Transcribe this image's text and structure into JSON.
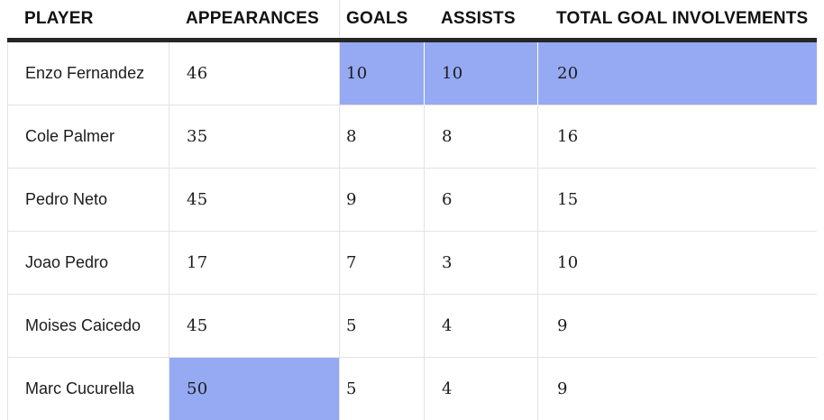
{
  "table": {
    "columns": [
      {
        "key": "player",
        "label": "PLAYER"
      },
      {
        "key": "appearances",
        "label": "APPEARANCES"
      },
      {
        "key": "goals",
        "label": "GOALS"
      },
      {
        "key": "assists",
        "label": "ASSISTS"
      },
      {
        "key": "total",
        "label": "TOTAL GOAL INVOLVEMENTS"
      }
    ],
    "rows": [
      {
        "player": "Enzo Fernandez",
        "appearances": "46",
        "goals": "10",
        "assists": "10",
        "total": "20"
      },
      {
        "player": "Cole Palmer",
        "appearances": "35",
        "goals": "8",
        "assists": "8",
        "total": "16"
      },
      {
        "player": "Pedro Neto",
        "appearances": "45",
        "goals": "9",
        "assists": "6",
        "total": "15"
      },
      {
        "player": "Joao Pedro",
        "appearances": "17",
        "goals": "7",
        "assists": "3",
        "total": "10"
      },
      {
        "player": "Moises Caicedo",
        "appearances": "45",
        "goals": "5",
        "assists": "4",
        "total": "9"
      },
      {
        "player": "Marc Cucurella",
        "appearances": "50",
        "goals": "5",
        "assists": "4",
        "total": "9"
      }
    ],
    "highlights": [
      {
        "row": 0,
        "columns": [
          "goals",
          "assists",
          "total"
        ]
      },
      {
        "row": 5,
        "columns": [
          "appearances"
        ]
      }
    ],
    "colors": {
      "highlight": "#96aaf3",
      "header_rule": "#262626",
      "grid_line": "#e3e3e3",
      "text": "#1c1c1c"
    }
  },
  "chart_data": {
    "type": "table",
    "columns": [
      "PLAYER",
      "APPEARANCES",
      "GOALS",
      "ASSISTS",
      "TOTAL GOAL INVOLVEMENTS"
    ],
    "rows": [
      [
        "Enzo Fernandez",
        46,
        10,
        10,
        20
      ],
      [
        "Cole Palmer",
        35,
        8,
        8,
        16
      ],
      [
        "Pedro Neto",
        45,
        9,
        6,
        15
      ],
      [
        "Joao Pedro",
        17,
        7,
        3,
        10
      ],
      [
        "Moises Caicedo",
        45,
        5,
        4,
        9
      ],
      [
        "Marc Cucurella",
        50,
        5,
        4,
        9
      ]
    ],
    "highlighted_cells": [
      {
        "row": "Enzo Fernandez",
        "columns": [
          "GOALS",
          "ASSISTS",
          "TOTAL GOAL INVOLVEMENTS"
        ]
      },
      {
        "row": "Marc Cucurella",
        "columns": [
          "APPEARANCES"
        ]
      }
    ],
    "title": "",
    "legend_position": "none",
    "grid": true
  }
}
